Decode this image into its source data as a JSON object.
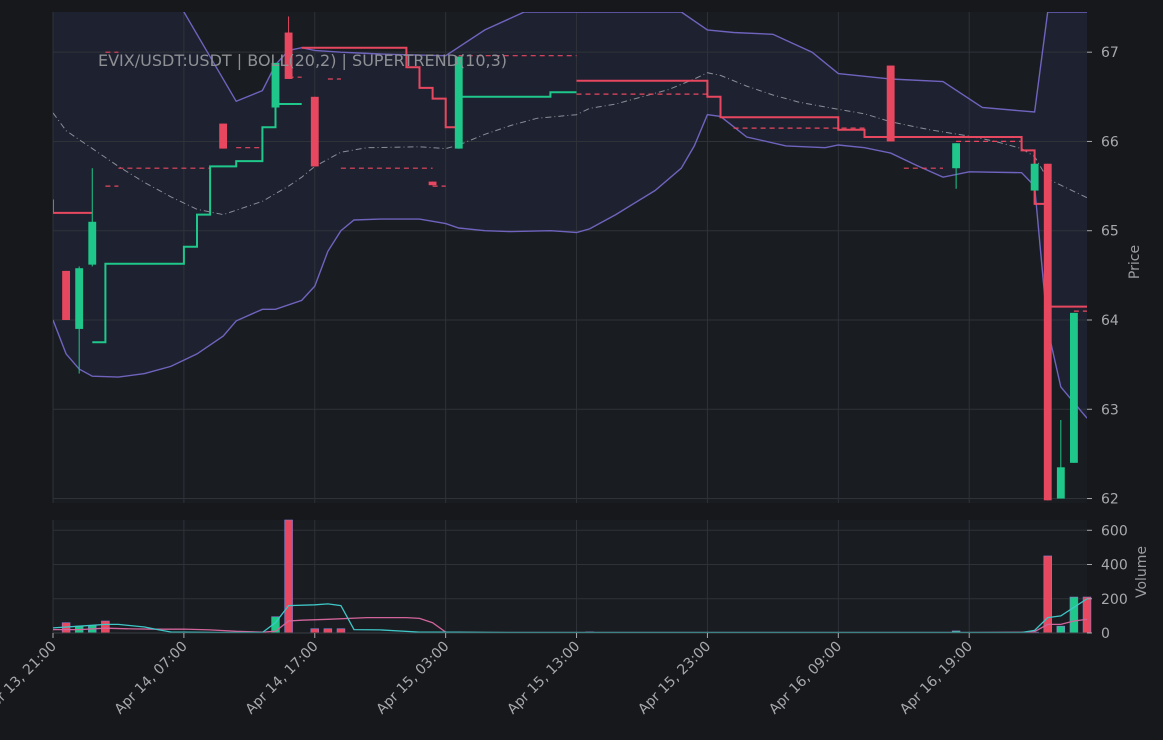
{
  "chart_data": {
    "type": "candlestick",
    "title": "EVIX/USDT:USDT | BOLL(20,2) | SUPERTREND(10,3)",
    "colors": {
      "background": "#16181c",
      "plot_bg": "#191c21",
      "band_fill": "#1e2130",
      "grid": "#2f3338",
      "up": "#1fc88a",
      "down": "#e8485f",
      "band_line": "#6f63bd",
      "mid_line": "#8a8e98",
      "supertrend_up": "#1fc88a",
      "supertrend_down": "#e8485f",
      "vol_ma_a": "#3fc6c6",
      "vol_ma_b": "#d1659b",
      "text": "#a7a9ad"
    },
    "price_axis": {
      "label": "Price",
      "ylim": [
        61.95,
        67.45
      ],
      "ticks": [
        62,
        63,
        64,
        65,
        66,
        67
      ]
    },
    "volume_axis": {
      "label": "Volume",
      "ylim": [
        0,
        660
      ],
      "ticks": [
        0,
        200,
        400,
        600
      ]
    },
    "x_axis": {
      "xlim": [
        0,
        79
      ],
      "tick_positions": [
        0,
        10,
        20,
        30,
        40,
        50,
        60,
        70
      ],
      "tick_labels": [
        "Apr 13, 21:00",
        "Apr 14, 07:00",
        "Apr 14, 17:00",
        "Apr 15, 03:00",
        "Apr 15, 13:00",
        "Apr 15, 23:00",
        "Apr 16, 09:00",
        "Apr 16, 19:00"
      ]
    },
    "candles": [
      {
        "x": 1,
        "o": 64.55,
        "h": 64.55,
        "c": 64.0,
        "l": 64.0
      },
      {
        "x": 2,
        "o": 63.9,
        "h": 64.6,
        "c": 64.58,
        "l": 63.4
      },
      {
        "x": 3,
        "o": 64.62,
        "h": 65.7,
        "c": 65.1,
        "l": 64.6
      },
      {
        "x": 13,
        "o": 66.2,
        "h": 66.2,
        "c": 65.92,
        "l": 65.92
      },
      {
        "x": 17,
        "o": 66.38,
        "h": 66.88,
        "c": 66.88,
        "l": 66.38
      },
      {
        "x": 18,
        "o": 67.22,
        "h": 67.4,
        "c": 66.7,
        "l": 66.7
      },
      {
        "x": 20,
        "o": 66.5,
        "h": 66.5,
        "c": 65.72,
        "l": 65.72
      },
      {
        "x": 29,
        "o": 65.55,
        "h": 65.55,
        "c": 65.51,
        "l": 65.51
      },
      {
        "x": 31,
        "o": 65.92,
        "h": 66.95,
        "c": 66.95,
        "l": 65.92
      },
      {
        "x": 64,
        "o": 66.85,
        "h": 66.85,
        "c": 66.0,
        "l": 66.0
      },
      {
        "x": 69,
        "o": 65.7,
        "h": 65.98,
        "c": 65.98,
        "l": 65.47
      },
      {
        "x": 75,
        "o": 65.45,
        "h": 65.75,
        "c": 65.75,
        "l": 65.45
      },
      {
        "x": 76,
        "o": 65.75,
        "h": 65.75,
        "c": 61.98,
        "l": 61.98
      },
      {
        "x": 77,
        "o": 62.0,
        "h": 62.88,
        "c": 62.35,
        "l": 62.0
      },
      {
        "x": 78,
        "o": 62.4,
        "h": 64.08,
        "c": 64.08,
        "l": 62.4
      }
    ],
    "boll_upper": [
      [
        0,
        68.6
      ],
      [
        4,
        68.9
      ],
      [
        8,
        68.2
      ],
      [
        10,
        67.45
      ],
      [
        14,
        66.45
      ],
      [
        16,
        66.57
      ],
      [
        17,
        66.86
      ],
      [
        18,
        67.02
      ],
      [
        19,
        67.05
      ],
      [
        20,
        67.02
      ],
      [
        22,
        67.0
      ],
      [
        25,
        66.98
      ],
      [
        30,
        66.96
      ],
      [
        33,
        67.25
      ],
      [
        36,
        67.45
      ],
      [
        48,
        67.45
      ],
      [
        50,
        67.25
      ],
      [
        52,
        67.22
      ],
      [
        55,
        67.2
      ],
      [
        58,
        67.0
      ],
      [
        60,
        66.76
      ],
      [
        64,
        66.7
      ],
      [
        68,
        66.67
      ],
      [
        71,
        66.38
      ],
      [
        75,
        66.33
      ],
      [
        76,
        67.45
      ],
      [
        79,
        67.45
      ]
    ],
    "boll_lower": [
      [
        0,
        64.0
      ],
      [
        1,
        63.62
      ],
      [
        2,
        63.45
      ],
      [
        3,
        63.37
      ],
      [
        5,
        63.36
      ],
      [
        7,
        63.4
      ],
      [
        9,
        63.48
      ],
      [
        11,
        63.62
      ],
      [
        13,
        63.82
      ],
      [
        14,
        63.99
      ],
      [
        16,
        64.12
      ],
      [
        17,
        64.12
      ],
      [
        19,
        64.22
      ],
      [
        20,
        64.38
      ],
      [
        21,
        64.77
      ],
      [
        22,
        65.0
      ],
      [
        23,
        65.12
      ],
      [
        25,
        65.13
      ],
      [
        28,
        65.13
      ],
      [
        30,
        65.08
      ],
      [
        31,
        65.03
      ],
      [
        33,
        65.0
      ],
      [
        35,
        64.99
      ],
      [
        38,
        65.0
      ],
      [
        39,
        64.99
      ],
      [
        40,
        64.98
      ],
      [
        41,
        65.02
      ],
      [
        43,
        65.18
      ],
      [
        46,
        65.45
      ],
      [
        48,
        65.7
      ],
      [
        49,
        65.95
      ],
      [
        50,
        66.3
      ],
      [
        51,
        66.28
      ],
      [
        53,
        66.05
      ],
      [
        56,
        65.95
      ],
      [
        59,
        65.93
      ],
      [
        60,
        65.96
      ],
      [
        62,
        65.93
      ],
      [
        64,
        65.87
      ],
      [
        66,
        65.73
      ],
      [
        68,
        65.6
      ],
      [
        70,
        65.66
      ],
      [
        74,
        65.65
      ],
      [
        75,
        65.5
      ],
      [
        76,
        63.9
      ],
      [
        77,
        63.25
      ],
      [
        79,
        62.9
      ]
    ],
    "boll_mid": [
      [
        0,
        66.32
      ],
      [
        1,
        66.12
      ],
      [
        3,
        65.92
      ],
      [
        5,
        65.72
      ],
      [
        7,
        65.54
      ],
      [
        9,
        65.38
      ],
      [
        11,
        65.24
      ],
      [
        13,
        65.18
      ],
      [
        14,
        65.23
      ],
      [
        16,
        65.33
      ],
      [
        18,
        65.5
      ],
      [
        19,
        65.6
      ],
      [
        20,
        65.72
      ],
      [
        22,
        65.88
      ],
      [
        24,
        65.93
      ],
      [
        28,
        65.94
      ],
      [
        30,
        65.92
      ],
      [
        31,
        65.96
      ],
      [
        33,
        66.08
      ],
      [
        35,
        66.18
      ],
      [
        37,
        66.26
      ],
      [
        40,
        66.3
      ],
      [
        41,
        66.37
      ],
      [
        43,
        66.42
      ],
      [
        45,
        66.5
      ],
      [
        47,
        66.58
      ],
      [
        49,
        66.7
      ],
      [
        50,
        66.77
      ],
      [
        51,
        66.74
      ],
      [
        53,
        66.62
      ],
      [
        55,
        66.52
      ],
      [
        57,
        66.44
      ],
      [
        60,
        66.36
      ],
      [
        62,
        66.31
      ],
      [
        64,
        66.22
      ],
      [
        67,
        66.13
      ],
      [
        70,
        66.06
      ],
      [
        72,
        66.0
      ],
      [
        74,
        65.92
      ],
      [
        75,
        65.83
      ],
      [
        76,
        65.58
      ],
      [
        79,
        65.37
      ]
    ],
    "supertrend_up_segments": [
      [
        [
          3,
          63.75
        ],
        [
          4,
          63.75
        ],
        [
          4,
          64.63
        ],
        [
          10,
          64.63
        ],
        [
          10,
          64.82
        ],
        [
          11,
          64.82
        ],
        [
          11,
          65.18
        ],
        [
          12,
          65.18
        ],
        [
          12,
          65.72
        ],
        [
          14,
          65.72
        ],
        [
          14,
          65.78
        ],
        [
          16,
          65.78
        ],
        [
          16,
          66.16
        ],
        [
          17,
          66.16
        ],
        [
          17,
          66.42
        ],
        [
          19,
          66.42
        ]
      ],
      [
        [
          31,
          65.92
        ],
        [
          31,
          66.5
        ],
        [
          38,
          66.5
        ],
        [
          38,
          66.55
        ],
        [
          40,
          66.55
        ]
      ]
    ],
    "supertrend_down_segments": [
      [
        [
          0,
          65.35
        ],
        [
          0,
          65.2
        ],
        [
          3,
          65.2
        ]
      ],
      [
        [
          19,
          67.05
        ],
        [
          27,
          67.05
        ],
        [
          27,
          66.83
        ],
        [
          28,
          66.83
        ],
        [
          28,
          66.6
        ],
        [
          29,
          66.6
        ],
        [
          29,
          66.48
        ],
        [
          30,
          66.48
        ],
        [
          30,
          66.16
        ],
        [
          31,
          66.16
        ]
      ],
      [
        [
          40,
          66.68
        ],
        [
          50,
          66.68
        ],
        [
          50,
          66.5
        ],
        [
          51,
          66.5
        ],
        [
          51,
          66.27
        ],
        [
          60,
          66.27
        ],
        [
          60,
          66.13
        ],
        [
          62,
          66.13
        ],
        [
          62,
          66.05
        ],
        [
          74,
          66.05
        ],
        [
          74,
          65.9
        ],
        [
          75,
          65.9
        ],
        [
          75,
          65.3
        ],
        [
          76,
          65.3
        ],
        [
          76,
          64.15
        ],
        [
          79,
          64.15
        ]
      ]
    ],
    "supertrend_dashed_down": [
      [
        [
          -1,
          64.6
        ],
        [
          0,
          64.6
        ]
      ],
      [
        [
          4,
          65.5
        ],
        [
          5,
          65.5
        ]
      ],
      [
        [
          5,
          65.7
        ],
        [
          12,
          65.7
        ]
      ],
      [
        [
          14,
          65.93
        ],
        [
          16,
          65.93
        ]
      ],
      [
        [
          18,
          66.72
        ],
        [
          19,
          66.72
        ]
      ],
      [
        [
          21,
          66.7
        ],
        [
          22,
          66.7
        ]
      ],
      [
        [
          22,
          65.7
        ],
        [
          29,
          65.7
        ]
      ],
      [
        [
          29,
          65.5
        ],
        [
          30,
          65.5
        ]
      ],
      [
        [
          40,
          66.53
        ],
        [
          50,
          66.53
        ]
      ],
      [
        [
          52,
          66.15
        ],
        [
          62,
          66.15
        ]
      ],
      [
        [
          65,
          65.7
        ],
        [
          68,
          65.7
        ]
      ],
      [
        [
          69,
          66.0
        ],
        [
          74,
          66.0
        ]
      ],
      [
        [
          78,
          64.1
        ],
        [
          79,
          64.1
        ]
      ]
    ],
    "supertrend_dashed_up": [
      [
        [
          4,
          67.0
        ],
        [
          5,
          67.0
        ]
      ],
      [
        [
          31,
          66.96
        ],
        [
          40,
          66.96
        ]
      ]
    ],
    "volume": [
      {
        "x": 1,
        "v": 60,
        "dir": "down"
      },
      {
        "x": 2,
        "v": 40,
        "dir": "up"
      },
      {
        "x": 3,
        "v": 45,
        "dir": "up"
      },
      {
        "x": 4,
        "v": 70,
        "dir": "down"
      },
      {
        "x": 17,
        "v": 95,
        "dir": "up"
      },
      {
        "x": 18,
        "v": 660,
        "dir": "down"
      },
      {
        "x": 20,
        "v": 25,
        "dir": "down"
      },
      {
        "x": 21,
        "v": 25,
        "dir": "down"
      },
      {
        "x": 22,
        "v": 25,
        "dir": "down"
      },
      {
        "x": 29,
        "v": 6,
        "dir": "down"
      },
      {
        "x": 31,
        "v": 6,
        "dir": "up"
      },
      {
        "x": 41,
        "v": 6,
        "dir": "up"
      },
      {
        "x": 69,
        "v": 12,
        "dir": "up"
      },
      {
        "x": 75,
        "v": 5,
        "dir": "up"
      },
      {
        "x": 76,
        "v": 450,
        "dir": "down"
      },
      {
        "x": 77,
        "v": 40,
        "dir": "up"
      },
      {
        "x": 78,
        "v": 210,
        "dir": "up"
      },
      {
        "x": 79,
        "v": 210,
        "dir": "down"
      }
    ],
    "vol_ma_a": [
      [
        0,
        30
      ],
      [
        2,
        40
      ],
      [
        4,
        50
      ],
      [
        5,
        50
      ],
      [
        7,
        35
      ],
      [
        8,
        20
      ],
      [
        9,
        6
      ],
      [
        13,
        3
      ],
      [
        16,
        3
      ],
      [
        17,
        60
      ],
      [
        18,
        160
      ],
      [
        20,
        165
      ],
      [
        21,
        170
      ],
      [
        22,
        160
      ],
      [
        23,
        20
      ],
      [
        25,
        18
      ],
      [
        28,
        5
      ],
      [
        30,
        5
      ],
      [
        35,
        3
      ],
      [
        70,
        3
      ],
      [
        74,
        3
      ],
      [
        75,
        15
      ],
      [
        76,
        90
      ],
      [
        77,
        100
      ],
      [
        78,
        150
      ],
      [
        79,
        200
      ]
    ],
    "vol_ma_b": [
      [
        0,
        20
      ],
      [
        2,
        20
      ],
      [
        4,
        28
      ],
      [
        6,
        24
      ],
      [
        8,
        22
      ],
      [
        10,
        23
      ],
      [
        12,
        18
      ],
      [
        14,
        10
      ],
      [
        16,
        5
      ],
      [
        17,
        10
      ],
      [
        18,
        70
      ],
      [
        19,
        75
      ],
      [
        21,
        80
      ],
      [
        24,
        90
      ],
      [
        27,
        90
      ],
      [
        28,
        85
      ],
      [
        29,
        60
      ],
      [
        30,
        5
      ],
      [
        33,
        3
      ],
      [
        70,
        3
      ],
      [
        74,
        4
      ],
      [
        75,
        8
      ],
      [
        76,
        50
      ],
      [
        77,
        50
      ],
      [
        78,
        70
      ],
      [
        79,
        80
      ]
    ]
  }
}
